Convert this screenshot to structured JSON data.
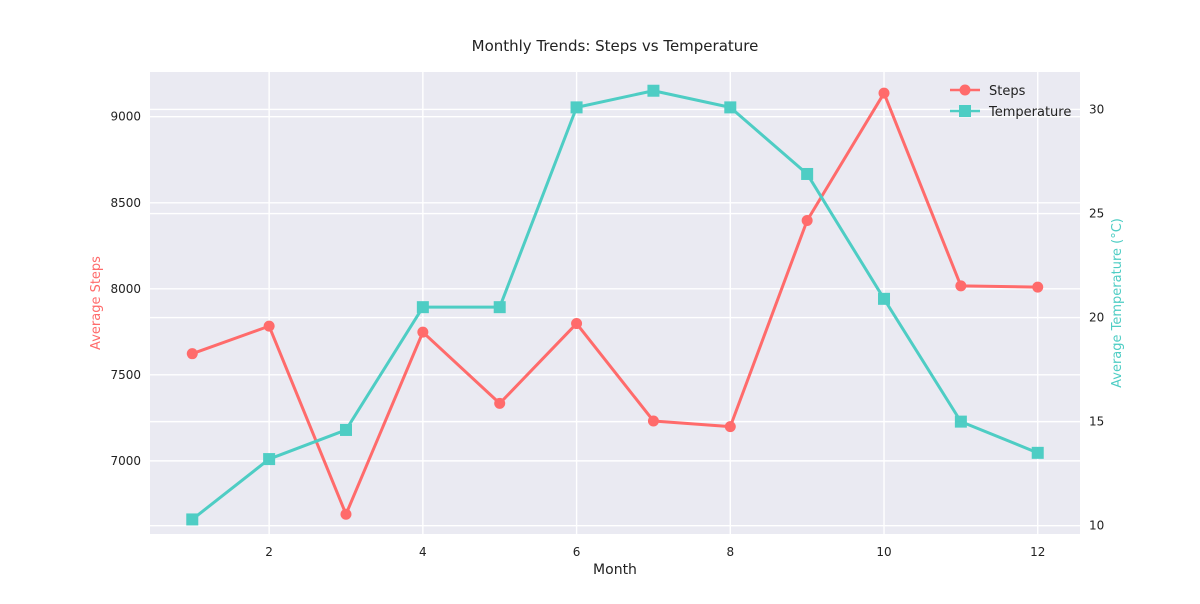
{
  "chart_data": {
    "type": "line",
    "title": "Monthly Trends: Steps vs Temperature",
    "xlabel": "Month",
    "ylabel_left": "Average Steps",
    "ylabel_right": "Average Temperature (°C)",
    "x": [
      1,
      2,
      3,
      4,
      5,
      6,
      7,
      8,
      9,
      10,
      11,
      12
    ],
    "xlim": [
      0.45,
      12.55
    ],
    "xticks": [
      2,
      4,
      6,
      8,
      10,
      12
    ],
    "ylim_left": [
      6575,
      9260
    ],
    "yticks_left": [
      7000,
      7500,
      8000,
      8500,
      9000
    ],
    "ylim_right": [
      9.6,
      31.8
    ],
    "yticks_right": [
      10,
      15,
      20,
      25,
      30
    ],
    "grid": true,
    "legend_position": "top-right",
    "colors": {
      "steps": "#ff6b6b",
      "temperature": "#4ecdc4",
      "plot_background": "#eaeaf2",
      "grid": "#ffffff"
    },
    "series": [
      {
        "name": "Steps",
        "axis": "left",
        "marker": "circle",
        "color": "#ff6b6b",
        "values": [
          7623,
          7783,
          6690,
          7748,
          7334,
          7798,
          7232,
          7199,
          8397,
          9137,
          8017,
          8010
        ]
      },
      {
        "name": "Temperature",
        "axis": "right",
        "marker": "square",
        "color": "#4ecdc4",
        "values": [
          10.3,
          13.2,
          14.6,
          20.5,
          20.5,
          30.1,
          30.9,
          30.1,
          26.9,
          20.9,
          15.0,
          13.5
        ]
      }
    ]
  }
}
